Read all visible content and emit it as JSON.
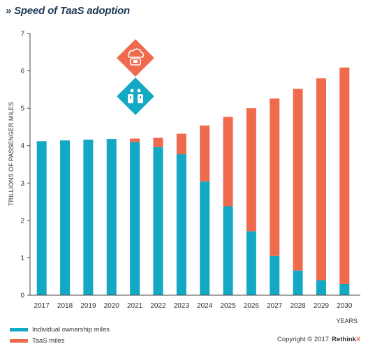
{
  "title": "» Speed of TaaS adoption",
  "colors": {
    "individual": "#13a9c4",
    "taas": "#ee6b4d",
    "axis": "#444444",
    "grid": "#e6e6e6"
  },
  "icons": [
    "self-driving-car-hail-icon",
    "personal-car-ownership-icon"
  ],
  "copyright": {
    "text": "Copyright © 2017",
    "brand": "Rethink",
    "brand_suffix": "X"
  },
  "chart_data": {
    "type": "bar",
    "stacked": true,
    "categories": [
      "2017",
      "2018",
      "2019",
      "2020",
      "2021",
      "2022",
      "2023",
      "2024",
      "2025",
      "2026",
      "2027",
      "2028",
      "2029",
      "2030"
    ],
    "series": [
      {
        "name": "Individual ownership miles",
        "values": [
          4.12,
          4.14,
          4.16,
          4.18,
          4.1,
          3.96,
          3.77,
          3.04,
          2.38,
          1.71,
          1.05,
          0.66,
          0.4,
          0.3
        ]
      },
      {
        "name": "TaaS miles",
        "values": [
          0,
          0,
          0,
          0,
          0.09,
          0.25,
          0.55,
          1.5,
          2.39,
          3.29,
          4.21,
          4.86,
          5.4,
          5.79
        ]
      }
    ],
    "xlabel": "YEARS",
    "ylabel": "TRILLIONS OF PASSENGER MILES",
    "ylim": [
      0,
      7
    ],
    "yticks": [
      0,
      1,
      2,
      3,
      4,
      5,
      6,
      7
    ],
    "legend_position": "bottom-left"
  }
}
